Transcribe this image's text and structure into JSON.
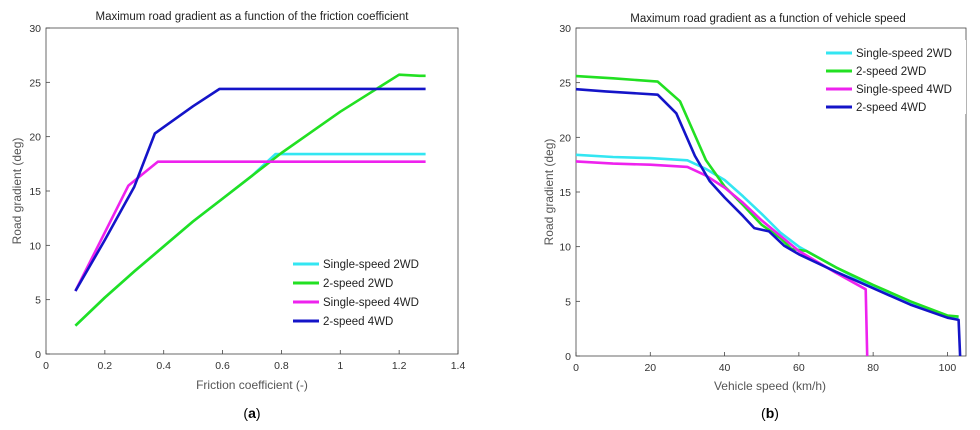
{
  "chart_data": [
    {
      "type": "line",
      "title": "Maximum road gradient as a function of the friction coefficient",
      "xlabel": "Friction coefficient (-)",
      "ylabel": "Road gradient (deg)",
      "caption_bold": "a",
      "xlim": [
        0,
        1.4
      ],
      "ylim": [
        0,
        30
      ],
      "xticks": [
        0,
        0.2,
        0.4,
        0.6,
        0.8,
        1,
        1.2,
        1.4
      ],
      "xtick_labels": [
        "0",
        "0.2",
        "0.4",
        "0.6",
        "0.8",
        "1",
        "1.2",
        "1.4"
      ],
      "yticks": [
        0,
        5,
        10,
        15,
        20,
        25,
        30
      ],
      "ytick_labels": [
        "0",
        "5",
        "10",
        "15",
        "20",
        "25",
        "30"
      ],
      "grid": false,
      "legend": "lower-right",
      "series": [
        {
          "name": "Single-speed 2WD",
          "color": "#33e6f2",
          "x": [
            0.1,
            0.2,
            0.3,
            0.4,
            0.5,
            0.6,
            0.7,
            0.78,
            0.9,
            1.0,
            1.1,
            1.2,
            1.29
          ],
          "y": [
            2.6,
            5.2,
            7.6,
            9.9,
            12.2,
            14.3,
            16.4,
            18.4,
            18.4,
            18.4,
            18.4,
            18.4,
            18.4
          ]
        },
        {
          "name": "2-speed 2WD",
          "color": "#22e022",
          "x": [
            0.1,
            0.2,
            0.3,
            0.4,
            0.5,
            0.6,
            0.7,
            0.8,
            0.9,
            1.0,
            1.1,
            1.2,
            1.27,
            1.29
          ],
          "y": [
            2.6,
            5.2,
            7.6,
            9.9,
            12.2,
            14.3,
            16.4,
            18.5,
            20.4,
            22.3,
            24.0,
            25.7,
            25.6,
            25.6
          ]
        },
        {
          "name": "Single-speed 4WD",
          "color": "#ee22ee",
          "x": [
            0.1,
            0.28,
            0.38,
            0.6,
            0.8,
            1.0,
            1.2,
            1.29
          ],
          "y": [
            5.8,
            15.5,
            17.7,
            17.7,
            17.7,
            17.7,
            17.7,
            17.7
          ]
        },
        {
          "name": "2-speed 4WD",
          "color": "#1414c8",
          "x": [
            0.1,
            0.2,
            0.3,
            0.37,
            0.5,
            0.59,
            0.8,
            1.0,
            1.2,
            1.29
          ],
          "y": [
            5.8,
            10.5,
            15.4,
            20.3,
            22.8,
            24.4,
            24.4,
            24.4,
            24.4,
            24.4
          ]
        }
      ]
    },
    {
      "type": "line",
      "title": "Maximum road gradient as a function of vehicle speed",
      "xlabel": "Vehicle speed (km/h)",
      "ylabel": "Road gradient (deg)",
      "caption_bold": "b",
      "xlim": [
        0,
        105
      ],
      "ylim": [
        0,
        30
      ],
      "xticks": [
        0,
        20,
        40,
        60,
        80,
        100
      ],
      "xtick_labels": [
        "0",
        "20",
        "40",
        "60",
        "80",
        "100"
      ],
      "yticks": [
        0,
        5,
        10,
        15,
        20,
        25,
        30
      ],
      "ytick_labels": [
        "0",
        "5",
        "10",
        "15",
        "20",
        "25",
        "30"
      ],
      "grid": false,
      "legend": "top-right",
      "series": [
        {
          "name": "Single-speed 2WD",
          "color": "#33e6f2",
          "x": [
            0,
            10,
            20,
            30,
            35,
            40,
            45,
            50,
            55,
            60,
            70,
            80,
            90,
            100,
            103
          ],
          "y": [
            18.4,
            18.2,
            18.1,
            17.9,
            17.1,
            16.1,
            14.6,
            13.0,
            11.3,
            10.0,
            8.1,
            6.3,
            4.9,
            3.6,
            3.5
          ]
        },
        {
          "name": "2-speed 2WD",
          "color": "#22e022",
          "x": [
            0,
            10,
            22,
            28,
            35,
            40,
            45,
            50,
            55,
            58,
            62,
            70,
            80,
            90,
            100,
            103
          ],
          "y": [
            25.6,
            25.4,
            25.1,
            23.3,
            17.9,
            15.5,
            13.8,
            12.0,
            10.8,
            9.8,
            9.6,
            8.1,
            6.5,
            5.0,
            3.7,
            3.6
          ]
        },
        {
          "name": "Single-speed 4WD",
          "color": "#ee22ee",
          "x": [
            0,
            10,
            20,
            30,
            35,
            40,
            45,
            50,
            55,
            60,
            70,
            78,
            78.4
          ],
          "y": [
            17.8,
            17.6,
            17.5,
            17.3,
            16.5,
            15.4,
            14.0,
            12.4,
            11.0,
            9.6,
            7.6,
            6.1,
            0
          ]
        },
        {
          "name": "2-speed 4WD",
          "color": "#1414c8",
          "x": [
            0,
            8,
            22,
            27,
            32,
            36,
            40,
            45,
            48,
            52,
            56,
            60,
            70,
            80,
            90,
            100,
            103,
            103.4
          ],
          "y": [
            24.4,
            24.2,
            23.9,
            22.2,
            18.3,
            16.0,
            14.5,
            12.8,
            11.7,
            11.4,
            10.1,
            9.3,
            7.7,
            6.2,
            4.7,
            3.5,
            3.3,
            0
          ]
        }
      ]
    }
  ]
}
